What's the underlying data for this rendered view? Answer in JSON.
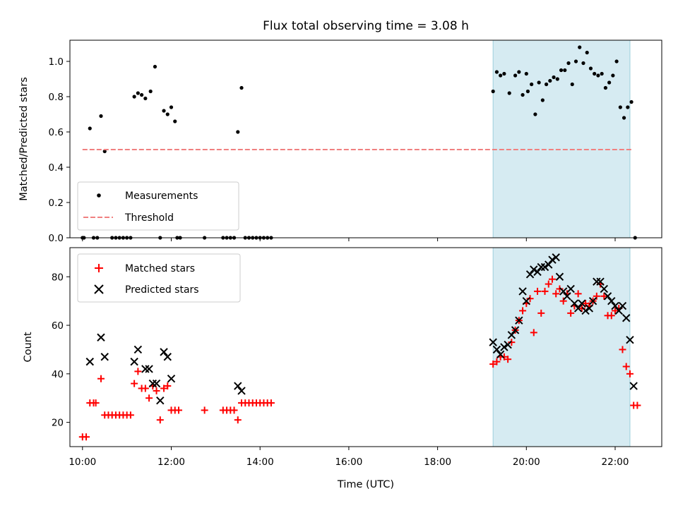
{
  "chart_data": [
    {
      "type": "scatter",
      "title": "Flux total observing time = 3.08 h",
      "xlabel": "",
      "ylabel": "Matched/Predicted stars",
      "xlim": [
        "09:43",
        "23:03"
      ],
      "ylim": [
        0,
        1.12
      ],
      "yticks": [
        "0.0",
        "0.2",
        "0.4",
        "0.6",
        "0.8",
        "1.0"
      ],
      "legend": "lower-left",
      "highlight_span": {
        "x": [
          "19:15",
          "22:20"
        ],
        "color": "#add8e6"
      },
      "series": [
        {
          "name": "Measurements",
          "color": "#000000",
          "marker": "dot",
          "points": [
            [
              "10:00",
              0
            ],
            [
              "10:02",
              0
            ],
            [
              "10:10",
              0.62
            ],
            [
              "10:15",
              0
            ],
            [
              "10:20",
              0
            ],
            [
              "10:25",
              0.69
            ],
            [
              "10:30",
              0.49
            ],
            [
              "10:40",
              0
            ],
            [
              "10:45",
              0
            ],
            [
              "10:50",
              0
            ],
            [
              "10:55",
              0
            ],
            [
              "11:00",
              0
            ],
            [
              "11:05",
              0
            ],
            [
              "11:10",
              0.8
            ],
            [
              "11:15",
              0.82
            ],
            [
              "11:20",
              0.81
            ],
            [
              "11:25",
              0.79
            ],
            [
              "11:32",
              0.83
            ],
            [
              "11:38",
              0.97
            ],
            [
              "11:45",
              0
            ],
            [
              "11:50",
              0.72
            ],
            [
              "11:55",
              0.7
            ],
            [
              "12:00",
              0.74
            ],
            [
              "12:05",
              0.66
            ],
            [
              "12:08",
              0
            ],
            [
              "12:12",
              0
            ],
            [
              "12:45",
              0
            ],
            [
              "13:10",
              0
            ],
            [
              "13:15",
              0
            ],
            [
              "13:20",
              0
            ],
            [
              "13:25",
              0
            ],
            [
              "13:30",
              0.6
            ],
            [
              "13:35",
              0.85
            ],
            [
              "13:40",
              0
            ],
            [
              "13:45",
              0
            ],
            [
              "13:50",
              0
            ],
            [
              "13:55",
              0
            ],
            [
              "14:00",
              0
            ],
            [
              "14:05",
              0
            ],
            [
              "14:10",
              0
            ],
            [
              "14:15",
              0
            ],
            [
              "19:15",
              0.83
            ],
            [
              "19:20",
              0.94
            ],
            [
              "19:25",
              0.92
            ],
            [
              "19:30",
              0.93
            ],
            [
              "19:37",
              0.82
            ],
            [
              "19:45",
              0.92
            ],
            [
              "19:50",
              0.94
            ],
            [
              "19:55",
              0.81
            ],
            [
              "20:00",
              0.93
            ],
            [
              "20:02",
              0.83
            ],
            [
              "20:07",
              0.87
            ],
            [
              "20:12",
              0.7
            ],
            [
              "20:17",
              0.88
            ],
            [
              "20:22",
              0.78
            ],
            [
              "20:27",
              0.87
            ],
            [
              "20:32",
              0.89
            ],
            [
              "20:37",
              0.91
            ],
            [
              "20:42",
              0.9
            ],
            [
              "20:47",
              0.95
            ],
            [
              "20:52",
              0.95
            ],
            [
              "20:57",
              0.99
            ],
            [
              "21:02",
              0.87
            ],
            [
              "21:07",
              1.0
            ],
            [
              "21:12",
              1.08
            ],
            [
              "21:17",
              0.99
            ],
            [
              "21:22",
              1.05
            ],
            [
              "21:27",
              0.96
            ],
            [
              "21:32",
              0.93
            ],
            [
              "21:37",
              0.92
            ],
            [
              "21:42",
              0.93
            ],
            [
              "21:47",
              0.85
            ],
            [
              "21:52",
              0.88
            ],
            [
              "21:57",
              0.92
            ],
            [
              "22:02",
              1.0
            ],
            [
              "22:07",
              0.74
            ],
            [
              "22:12",
              0.68
            ],
            [
              "22:17",
              0.74
            ],
            [
              "22:22",
              0.77
            ],
            [
              "22:27",
              0
            ]
          ]
        },
        {
          "name": "Threshold",
          "color": "#f08080",
          "style": "dashed",
          "x": [
            "10:00",
            "22:22"
          ],
          "y": [
            0.5,
            0.5
          ]
        }
      ]
    },
    {
      "type": "scatter",
      "title": "",
      "xlabel": "Time (UTC)",
      "ylabel": "Count",
      "xlim": [
        "09:43",
        "23:03"
      ],
      "ylim": [
        10,
        92
      ],
      "yticks": [
        "20",
        "40",
        "60",
        "80"
      ],
      "xticks": [
        "10:00",
        "12:00",
        "14:00",
        "16:00",
        "18:00",
        "20:00",
        "22:00"
      ],
      "legend": "upper-left",
      "highlight_span": {
        "x": [
          "19:15",
          "22:20"
        ],
        "color": "#add8e6"
      },
      "series": [
        {
          "name": "Matched stars",
          "color": "#ff0000",
          "marker": "plus",
          "points": [
            [
              "10:00",
              14
            ],
            [
              "10:05",
              14
            ],
            [
              "10:10",
              28
            ],
            [
              "10:15",
              28
            ],
            [
              "10:18",
              28
            ],
            [
              "10:25",
              38
            ],
            [
              "10:30",
              23
            ],
            [
              "10:35",
              23
            ],
            [
              "10:40",
              23
            ],
            [
              "10:45",
              23
            ],
            [
              "10:50",
              23
            ],
            [
              "10:55",
              23
            ],
            [
              "11:00",
              23
            ],
            [
              "11:05",
              23
            ],
            [
              "11:10",
              36
            ],
            [
              "11:15",
              41
            ],
            [
              "11:20",
              34
            ],
            [
              "11:25",
              34
            ],
            [
              "11:30",
              30
            ],
            [
              "11:35",
              35
            ],
            [
              "11:40",
              33
            ],
            [
              "11:45",
              21
            ],
            [
              "11:50",
              34
            ],
            [
              "11:55",
              35
            ],
            [
              "12:00",
              25
            ],
            [
              "12:05",
              25
            ],
            [
              "12:10",
              25
            ],
            [
              "12:45",
              25
            ],
            [
              "13:10",
              25
            ],
            [
              "13:15",
              25
            ],
            [
              "13:20",
              25
            ],
            [
              "13:25",
              25
            ],
            [
              "13:30",
              21
            ],
            [
              "13:35",
              28
            ],
            [
              "13:40",
              28
            ],
            [
              "13:45",
              28
            ],
            [
              "13:50",
              28
            ],
            [
              "13:55",
              28
            ],
            [
              "14:00",
              28
            ],
            [
              "14:05",
              28
            ],
            [
              "14:10",
              28
            ],
            [
              "14:15",
              28
            ],
            [
              "19:15",
              44
            ],
            [
              "19:20",
              45
            ],
            [
              "19:25",
              47
            ],
            [
              "19:30",
              47
            ],
            [
              "19:35",
              46
            ],
            [
              "19:40",
              53
            ],
            [
              "19:45",
              58
            ],
            [
              "19:50",
              62
            ],
            [
              "19:55",
              66
            ],
            [
              "20:00",
              69
            ],
            [
              "20:05",
              71
            ],
            [
              "20:10",
              57
            ],
            [
              "20:15",
              74
            ],
            [
              "20:20",
              65
            ],
            [
              "20:25",
              74
            ],
            [
              "20:30",
              77
            ],
            [
              "20:35",
              79
            ],
            [
              "20:40",
              73
            ],
            [
              "20:45",
              75
            ],
            [
              "20:50",
              70
            ],
            [
              "20:55",
              73
            ],
            [
              "21:00",
              65
            ],
            [
              "21:05",
              68
            ],
            [
              "21:10",
              73
            ],
            [
              "21:15",
              67
            ],
            [
              "21:20",
              69
            ],
            [
              "21:25",
              68
            ],
            [
              "21:30",
              70
            ],
            [
              "21:35",
              72
            ],
            [
              "21:40",
              77
            ],
            [
              "21:45",
              72
            ],
            [
              "21:50",
              64
            ],
            [
              "21:55",
              64
            ],
            [
              "22:00",
              66
            ],
            [
              "22:05",
              67
            ],
            [
              "22:10",
              50
            ],
            [
              "22:15",
              43
            ],
            [
              "22:20",
              40
            ],
            [
              "22:25",
              27
            ],
            [
              "22:30",
              27
            ]
          ]
        },
        {
          "name": "Predicted stars",
          "color": "#000000",
          "marker": "x",
          "points": [
            [
              "10:10",
              45
            ],
            [
              "10:25",
              55
            ],
            [
              "10:30",
              47
            ],
            [
              "11:10",
              45
            ],
            [
              "11:15",
              50
            ],
            [
              "11:25",
              42
            ],
            [
              "11:30",
              42
            ],
            [
              "11:35",
              36
            ],
            [
              "11:40",
              36
            ],
            [
              "11:45",
              29
            ],
            [
              "11:50",
              49
            ],
            [
              "11:55",
              47
            ],
            [
              "12:00",
              38
            ],
            [
              "13:30",
              35
            ],
            [
              "13:35",
              33
            ],
            [
              "19:15",
              53
            ],
            [
              "19:20",
              50
            ],
            [
              "19:25",
              48
            ],
            [
              "19:30",
              51
            ],
            [
              "19:35",
              52
            ],
            [
              "19:40",
              56
            ],
            [
              "19:45",
              58
            ],
            [
              "19:50",
              62
            ],
            [
              "19:55",
              74
            ],
            [
              "20:00",
              70
            ],
            [
              "20:05",
              81
            ],
            [
              "20:10",
              83
            ],
            [
              "20:15",
              82
            ],
            [
              "20:20",
              84
            ],
            [
              "20:25",
              84
            ],
            [
              "20:30",
              85
            ],
            [
              "20:35",
              87
            ],
            [
              "20:40",
              88
            ],
            [
              "20:45",
              80
            ],
            [
              "20:50",
              74
            ],
            [
              "20:55",
              72
            ],
            [
              "21:00",
              75
            ],
            [
              "21:05",
              69
            ],
            [
              "21:10",
              67
            ],
            [
              "21:15",
              69
            ],
            [
              "21:20",
              66
            ],
            [
              "21:25",
              67
            ],
            [
              "21:30",
              70
            ],
            [
              "21:35",
              78
            ],
            [
              "21:40",
              78
            ],
            [
              "21:45",
              75
            ],
            [
              "21:50",
              72
            ],
            [
              "21:55",
              70
            ],
            [
              "22:00",
              68
            ],
            [
              "22:05",
              66
            ],
            [
              "22:10",
              68
            ],
            [
              "22:15",
              63
            ],
            [
              "22:20",
              54
            ],
            [
              "22:25",
              35
            ]
          ]
        }
      ]
    }
  ]
}
